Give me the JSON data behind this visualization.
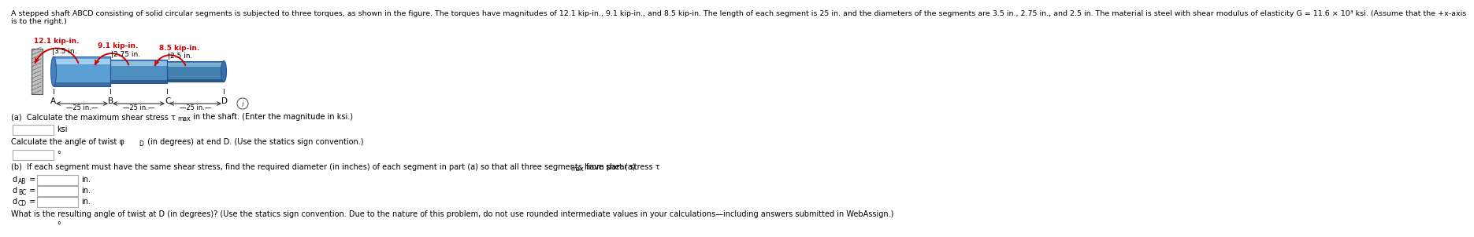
{
  "title_line1": "A stepped shaft ABCD consisting of solid circular segments is subjected to three torques, as shown in the figure. The torques have magnitudes of 12.1 kip-in., 9.1 kip-in., and 8.5 kip-in. The length of each segment is 25 in. and the diameters of the segments are 3.5 in., 2.75 in., and 2.5 in. The material is steel with shear modulus of elasticity G = 11.6 × 10³ ksi. (Assume that the +x-axis",
  "title_line2": "is to the right.)",
  "torques": [
    "12.1 kip-in.",
    "9.1 kip-in.",
    "8.5 kip-in."
  ],
  "diameters": [
    "|3.5 in.",
    "|2.75 in.",
    "|2.5 in."
  ],
  "lengths": [
    "25 in.",
    "25 in.",
    "25 in."
  ],
  "points": [
    "A",
    "B",
    "C",
    "D"
  ],
  "bg_color": "#ffffff",
  "text_color": "#000000",
  "red_color": "#cc0000",
  "shaft_blue": "#5b9fd4",
  "shaft_light": "#a8d4f5",
  "shaft_dark": "#1a4a80",
  "wall_gray": "#aaaaaa",
  "box_border": "#aaaaaa",
  "part_a_text": "(a)  Calculate the maximum shear stress τ",
  "part_a_sub": "max",
  "part_a_rest": " in the shaft. (Enter the magnitude in ksi.)",
  "twist_text": "Calculate the angle of twist φ",
  "twist_sub": "D",
  "twist_rest": " (in degrees) at end D. (Use the statics sign convention.)",
  "part_b_text": "(b)  If each segment must have the same shear stress, find the required diameter (in inches) of each segment in part (a) so that all three segments have shear stress τ",
  "part_b_sub": "max",
  "part_b_rest": " from part (a).",
  "final_text": "What is the resulting angle of twist at D (in degrees)? (Use the statics sign convention. Due to the nature of this problem, do not use rounded intermediate values in your calculations—including answers submitted in WebAssign.)"
}
